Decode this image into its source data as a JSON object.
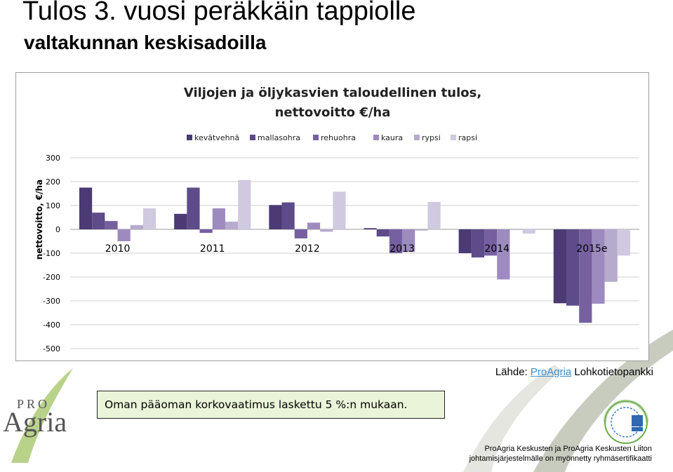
{
  "slide": {
    "title": "Tulos 3. vuosi peräkkäin tappiolle",
    "subtitle": "valtakunnan keskisadoilla"
  },
  "source": {
    "prefix": "Lähde: ",
    "link": "ProAgria",
    "suffix": " Lohkotietopankki"
  },
  "note": "Oman pääoman korkovaatimus laskettu 5 %:n mukaan.",
  "logo": {
    "pro": "PRO",
    "agria": "Agria"
  },
  "footer": {
    "line1": "ProAgria Keskusten ja ProAgria Keskusten Liiton",
    "line2": "johtamisjärjestelmälle on myönnetty ryhmäsertifikaatti"
  },
  "chart_data": {
    "type": "bar",
    "title_lines": [
      "Viljojen ja öljykasvien taloudellinen tulos,",
      "nettovoitto €/ha"
    ],
    "ylabel": "nettovoitto, €/ha",
    "xlabel": "",
    "ylim": [
      -500,
      300
    ],
    "yticks": [
      300,
      200,
      100,
      0,
      -100,
      -200,
      -300,
      -400,
      -500
    ],
    "grid": true,
    "legend_position": "top",
    "categories": [
      "2010",
      "2011",
      "2012",
      "2013",
      "2014",
      "2015e"
    ],
    "series": [
      {
        "name": "kevätvehnä",
        "color": "#4b3a73",
        "values": [
          175,
          65,
          102,
          5,
          -100,
          -310
        ]
      },
      {
        "name": "mallasohra",
        "color": "#5e4b8a",
        "values": [
          70,
          175,
          113,
          -30,
          -118,
          -320
        ]
      },
      {
        "name": "rehuohra",
        "color": "#76609f",
        "values": [
          35,
          -15,
          -38,
          -100,
          -110,
          -392
        ]
      },
      {
        "name": "kaura",
        "color": "#9d8bbf",
        "values": [
          -50,
          88,
          28,
          -95,
          -210,
          -312
        ]
      },
      {
        "name": "rypsi",
        "color": "#b6aacd",
        "values": [
          18,
          32,
          -10,
          -5,
          0,
          -220
        ]
      },
      {
        "name": "rapsi",
        "color": "#d1c9df",
        "values": [
          88,
          207,
          158,
          115,
          -18,
          -110
        ]
      }
    ]
  }
}
